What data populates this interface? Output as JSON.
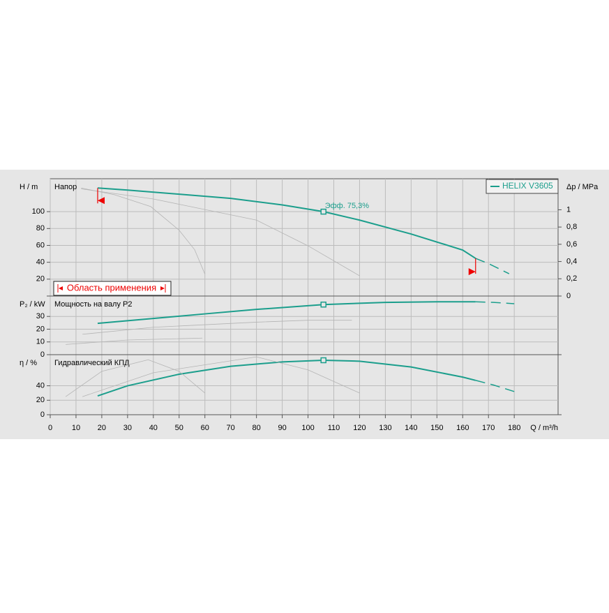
{
  "chart_data": [
    {
      "type": "line",
      "title": "Напор",
      "ylabel": "H / m",
      "y2label": "Δp / MPa",
      "xlim": [
        0,
        197
      ],
      "ylim": [
        0,
        139
      ],
      "yticks": [
        20,
        40,
        60,
        80,
        100
      ],
      "y2lim": [
        0,
        1.36
      ],
      "y2ticks": [
        0,
        {
          "value": 0.2,
          "label": "0,2"
        },
        {
          "value": 0.4,
          "label": "0,4"
        },
        {
          "value": 0.6,
          "label": "0,6"
        },
        {
          "value": 0.8,
          "label": "0,8"
        },
        1
      ],
      "grid": true,
      "legend": "top-right",
      "series": [
        {
          "name": "HELIX V3605",
          "color": "#1b9e8c",
          "x": [
            18.4,
            30,
            50,
            70,
            90,
            106,
            120,
            140,
            160,
            165
          ],
          "values": [
            128,
            125.6,
            120.7,
            115.7,
            108,
            100,
            90,
            73.5,
            54.5,
            44.6
          ]
        },
        {
          "color": "#1b9e8c",
          "style": "dashed",
          "x": [
            165,
            170,
            178
          ],
          "values": [
            44.6,
            38.5,
            26.4
          ]
        },
        {
          "color": "#b4b4b4",
          "x": [
            12,
            25,
            39,
            50,
            56,
            60
          ],
          "values": [
            128,
            120,
            106,
            78,
            55,
            26
          ]
        },
        {
          "color": "#b4b4b4",
          "x": [
            12,
            40,
            80,
            100,
            120
          ],
          "values": [
            127,
            115,
            90,
            59.5,
            24
          ]
        }
      ],
      "duty_point": {
        "x": 106,
        "y": 100,
        "label": "Эфф.  75,3%"
      },
      "operating_range": {
        "label": "Область применения",
        "from": 18.4,
        "to": 165
      }
    },
    {
      "type": "line",
      "title": "Мощность на валу P2",
      "ylabel": "P₂ / kW",
      "xlim": [
        0,
        197
      ],
      "ylim": [
        0,
        46
      ],
      "yticks": [
        0,
        10,
        20,
        30
      ],
      "grid": true,
      "series": [
        {
          "color": "#1b9e8c",
          "x": [
            18.4,
            40,
            60,
            80,
            106,
            130,
            150,
            165
          ],
          "values": [
            24.6,
            28.4,
            32,
            35.5,
            39.3,
            41,
            41.5,
            41.5
          ]
        },
        {
          "color": "#1b9e8c",
          "style": "dashed",
          "x": [
            165,
            172,
            180
          ],
          "values": [
            41.5,
            41,
            40
          ]
        },
        {
          "color": "#b4b4b4",
          "x": [
            6,
            30,
            59
          ],
          "values": [
            8,
            11.5,
            13
          ]
        },
        {
          "color": "#b4b4b4",
          "x": [
            12.5,
            40,
            80,
            100,
            117
          ],
          "values": [
            16,
            21.5,
            25.5,
            27,
            27
          ]
        }
      ],
      "duty_point": {
        "x": 106,
        "y": 39.3
      }
    },
    {
      "type": "line",
      "title": "Гидравлический КПД",
      "ylabel": "η / %",
      "xlabel": "Q / m³/h",
      "xlim": [
        0,
        197
      ],
      "ylim": [
        0,
        83
      ],
      "yticks": [
        0,
        20,
        40
      ],
      "xticks": [
        0,
        10,
        20,
        30,
        40,
        50,
        60,
        70,
        80,
        90,
        100,
        110,
        120,
        130,
        140,
        150,
        160,
        170,
        180
      ],
      "grid": true,
      "series": [
        {
          "color": "#1b9e8c",
          "x": [
            18.4,
            30,
            50,
            70,
            90,
            106,
            120,
            140,
            160,
            165
          ],
          "values": [
            26,
            40,
            56,
            67,
            73,
            75.3,
            74,
            66,
            52,
            47.5
          ]
        },
        {
          "color": "#1b9e8c",
          "style": "dashed",
          "x": [
            165,
            172,
            180
          ],
          "values": [
            47.5,
            41,
            32
          ]
        },
        {
          "color": "#b4b4b4",
          "x": [
            6,
            20,
            38,
            50,
            60
          ],
          "values": [
            25,
            60,
            76,
            60,
            30
          ]
        },
        {
          "color": "#b4b4b4",
          "x": [
            12.5,
            40,
            80,
            100,
            120
          ],
          "values": [
            25,
            58,
            80,
            62,
            30
          ]
        }
      ],
      "duty_point": {
        "x": 106,
        "y": 75.3
      }
    }
  ]
}
